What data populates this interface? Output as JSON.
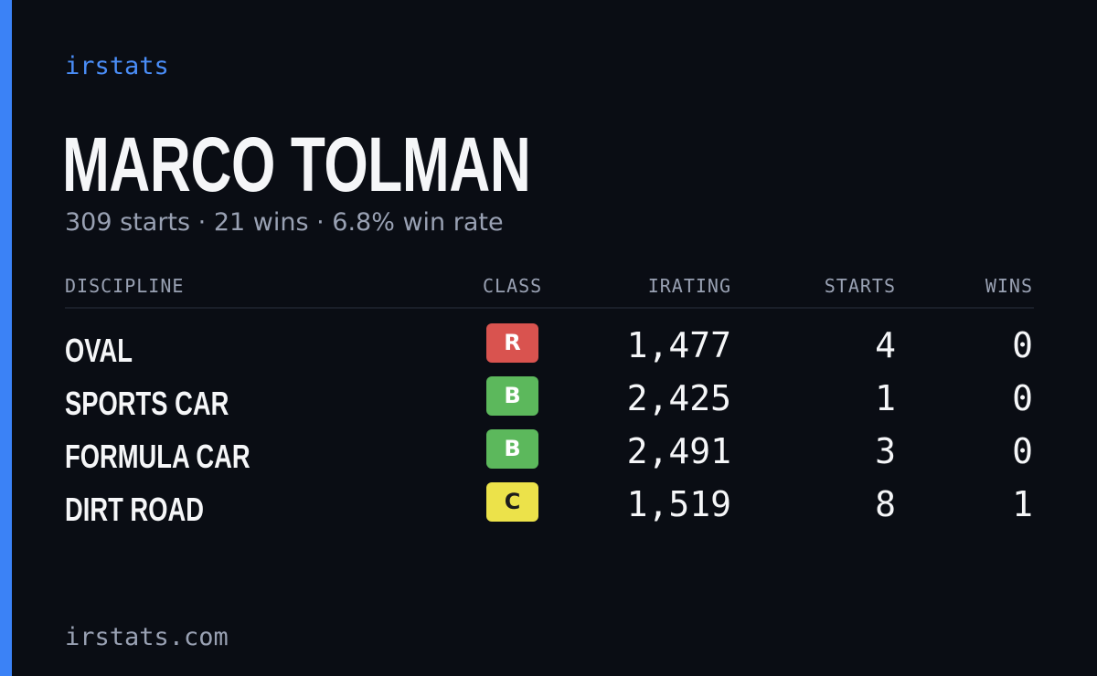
{
  "brand": "irstats",
  "driver": {
    "name": "MARCO TOLMAN",
    "summary": "309 starts · 21 wins · 6.8% win rate"
  },
  "table": {
    "headers": {
      "discipline": "DISCIPLINE",
      "class": "CLASS",
      "irating": "IRATING",
      "starts": "STARTS",
      "wins": "WINS"
    },
    "rows": [
      {
        "discipline": "OVAL",
        "class": "R",
        "class_color": "#d9534f",
        "class_text_color": "#ffffff",
        "irating": "1,477",
        "starts": "4",
        "wins": "0"
      },
      {
        "discipline": "SPORTS CAR",
        "class": "B",
        "class_color": "#5cb85c",
        "class_text_color": "#ffffff",
        "irating": "2,425",
        "starts": "1",
        "wins": "0"
      },
      {
        "discipline": "FORMULA CAR",
        "class": "B",
        "class_color": "#5cb85c",
        "class_text_color": "#ffffff",
        "irating": "2,491",
        "starts": "3",
        "wins": "0"
      },
      {
        "discipline": "DIRT ROAD",
        "class": "C",
        "class_color": "#ece24a",
        "class_text_color": "#1c1c1c",
        "irating": "1,519",
        "starts": "8",
        "wins": "1"
      }
    ]
  },
  "footer": "irstats.com",
  "colors": {
    "background": "#0a0d14",
    "accent": "#3b82f6",
    "brand_text": "#4a8df7",
    "muted_text": "#99a1b3",
    "primary_text": "#f5f6f8"
  }
}
